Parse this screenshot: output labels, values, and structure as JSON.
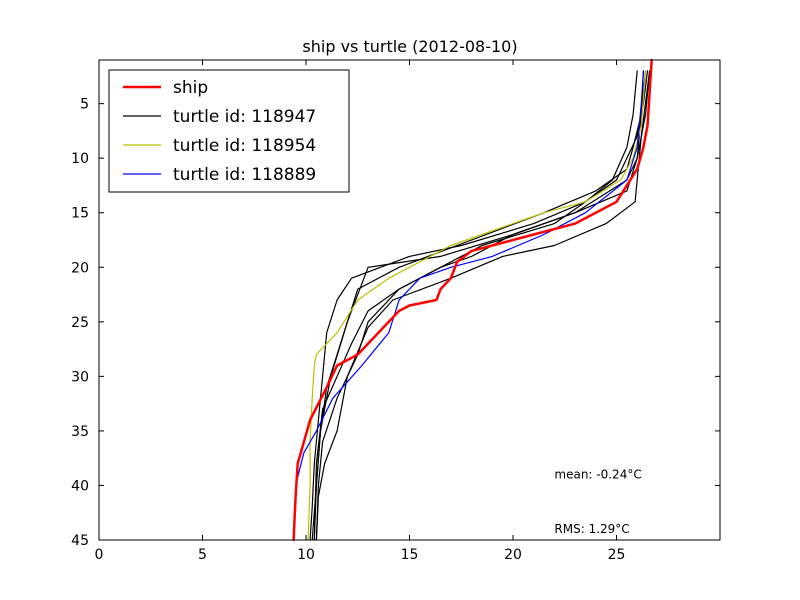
{
  "chart_data": {
    "type": "line",
    "title": "ship vs turtle (2012-08-10)",
    "xlabel": "",
    "ylabel": "",
    "xlim": [
      0,
      30
    ],
    "ylim": [
      45,
      1
    ],
    "y_inverted": true,
    "grid": false,
    "legend_position": "top-left",
    "xticks": [
      0,
      5,
      10,
      15,
      20,
      25
    ],
    "yticks": [
      5,
      10,
      15,
      20,
      25,
      30,
      35,
      40,
      45
    ],
    "annotations": [
      {
        "text": "mean: -0.24°C",
        "x": 22,
        "y": 39
      },
      {
        "text": "RMS: 1.29°C",
        "x": 22,
        "y": 44
      }
    ],
    "series": [
      {
        "name": "turtle id: 118947",
        "color": "#000000",
        "width": 1.2,
        "points": [
          [
            26.0,
            2
          ],
          [
            25.8,
            6
          ],
          [
            25.5,
            9
          ],
          [
            24.8,
            12
          ],
          [
            23.5,
            14
          ],
          [
            21.0,
            16
          ],
          [
            17.5,
            18
          ],
          [
            15.0,
            19
          ],
          [
            12.2,
            21
          ],
          [
            11.5,
            23
          ],
          [
            11.0,
            26
          ],
          [
            10.8,
            30
          ],
          [
            10.6,
            34
          ],
          [
            10.4,
            38
          ],
          [
            10.3,
            42
          ],
          [
            10.2,
            45
          ]
        ]
      },
      {
        "name": "",
        "color": "#000000",
        "width": 1.2,
        "points": [
          [
            26.3,
            2
          ],
          [
            26.2,
            6
          ],
          [
            26.0,
            10
          ],
          [
            25.5,
            13
          ],
          [
            23.0,
            15
          ],
          [
            20.0,
            17
          ],
          [
            16.5,
            19
          ],
          [
            13.0,
            20
          ],
          [
            12.0,
            25
          ],
          [
            11.2,
            30
          ],
          [
            10.7,
            35
          ],
          [
            10.5,
            40
          ],
          [
            10.3,
            45
          ]
        ]
      },
      {
        "name": "",
        "color": "#000000",
        "width": 1.2,
        "points": [
          [
            26.5,
            2
          ],
          [
            26.3,
            5
          ],
          [
            26.0,
            8
          ],
          [
            25.0,
            12
          ],
          [
            22.0,
            16
          ],
          [
            18.5,
            18
          ],
          [
            16.5,
            20
          ],
          [
            14.5,
            22
          ],
          [
            13.0,
            24
          ],
          [
            12.2,
            27
          ],
          [
            11.5,
            30
          ],
          [
            10.8,
            33
          ],
          [
            10.5,
            38
          ],
          [
            10.4,
            45
          ]
        ]
      },
      {
        "name": "",
        "color": "#000000",
        "width": 1.2,
        "points": [
          [
            26.4,
            2
          ],
          [
            26.2,
            6
          ],
          [
            25.8,
            9
          ],
          [
            25.5,
            11
          ],
          [
            24.0,
            13
          ],
          [
            21.5,
            15
          ],
          [
            18.0,
            17.5
          ],
          [
            14.5,
            20
          ],
          [
            12.5,
            22
          ],
          [
            12.0,
            25
          ],
          [
            11.5,
            28
          ],
          [
            11.0,
            31
          ],
          [
            10.7,
            35
          ],
          [
            10.5,
            40
          ],
          [
            10.4,
            45
          ]
        ]
      },
      {
        "name": "",
        "color": "#000000",
        "width": 1.2,
        "points": [
          [
            26.6,
            2
          ],
          [
            26.2,
            8
          ],
          [
            25.9,
            14
          ],
          [
            24.5,
            16
          ],
          [
            22.0,
            18
          ],
          [
            19.5,
            19
          ],
          [
            17.0,
            21
          ],
          [
            14.2,
            23
          ],
          [
            13.0,
            25.5
          ],
          [
            12.0,
            30
          ],
          [
            11.5,
            35
          ],
          [
            10.9,
            38
          ],
          [
            10.6,
            41
          ],
          [
            10.5,
            45
          ]
        ]
      },
      {
        "name": "",
        "color": "#000000",
        "width": 1.2,
        "points": [
          [
            26.6,
            2
          ],
          [
            26.4,
            6
          ],
          [
            26.0,
            10
          ],
          [
            25.5,
            12
          ],
          [
            23.0,
            15
          ],
          [
            20.0,
            17
          ],
          [
            18.0,
            19
          ],
          [
            16.5,
            20
          ],
          [
            14.5,
            22
          ],
          [
            13.0,
            25
          ],
          [
            12.5,
            28
          ],
          [
            11.5,
            32
          ],
          [
            10.8,
            36
          ],
          [
            10.6,
            40
          ],
          [
            10.5,
            45
          ]
        ]
      },
      {
        "name": "turtle id: 118954",
        "color": "#bfbf00",
        "width": 1.2,
        "points": [
          [
            26.4,
            2
          ],
          [
            26.2,
            7
          ],
          [
            25.8,
            10
          ],
          [
            25.2,
            12
          ],
          [
            23.5,
            14
          ],
          [
            21.5,
            15
          ],
          [
            20.0,
            16
          ],
          [
            18.5,
            17
          ],
          [
            17.0,
            18
          ],
          [
            15.5,
            19.5
          ],
          [
            14.0,
            21
          ],
          [
            12.5,
            23
          ],
          [
            11.5,
            26
          ],
          [
            10.5,
            28
          ],
          [
            10.4,
            29
          ],
          [
            10.3,
            32
          ],
          [
            10.2,
            36
          ],
          [
            10.2,
            40
          ],
          [
            10.1,
            45
          ]
        ]
      },
      {
        "name": "turtle id: 118889",
        "color": "#0000ff",
        "width": 1.2,
        "points": [
          [
            26.3,
            2
          ],
          [
            26.2,
            5
          ],
          [
            26.0,
            9
          ],
          [
            25.5,
            12
          ],
          [
            23.5,
            15
          ],
          [
            21.5,
            17
          ],
          [
            19.0,
            19
          ],
          [
            17.0,
            20
          ],
          [
            15.5,
            21
          ],
          [
            14.5,
            23
          ],
          [
            14.0,
            26
          ],
          [
            12.7,
            29
          ],
          [
            11.3,
            32
          ],
          [
            10.5,
            35
          ],
          [
            9.9,
            37
          ],
          [
            9.5,
            40
          ],
          [
            9.4,
            45
          ]
        ]
      },
      {
        "name": "ship",
        "color": "#ff0000",
        "width": 2.5,
        "points": [
          [
            26.7,
            1
          ],
          [
            26.6,
            4
          ],
          [
            26.5,
            7
          ],
          [
            26.3,
            9
          ],
          [
            26.0,
            11
          ],
          [
            25.0,
            14
          ],
          [
            23.0,
            16
          ],
          [
            21.0,
            17
          ],
          [
            19.0,
            18
          ],
          [
            18.0,
            18.5
          ],
          [
            17.3,
            19.5
          ],
          [
            17.0,
            21
          ],
          [
            16.5,
            22
          ],
          [
            16.3,
            23
          ],
          [
            15.0,
            23.5
          ],
          [
            14.5,
            24
          ],
          [
            13.0,
            27
          ],
          [
            12.5,
            28
          ],
          [
            11.5,
            29
          ],
          [
            11.0,
            31
          ],
          [
            10.2,
            34
          ],
          [
            9.9,
            36
          ],
          [
            9.6,
            38
          ],
          [
            9.5,
            41
          ],
          [
            9.4,
            45
          ]
        ]
      }
    ],
    "legend": [
      {
        "label": "ship",
        "color": "#ff0000",
        "width": 2.5
      },
      {
        "label": "turtle id: 118947",
        "color": "#000000",
        "width": 1.2
      },
      {
        "label": "turtle id: 118954",
        "color": "#bfbf00",
        "width": 1.2
      },
      {
        "label": "turtle id: 118889",
        "color": "#0000ff",
        "width": 1.2
      }
    ]
  }
}
